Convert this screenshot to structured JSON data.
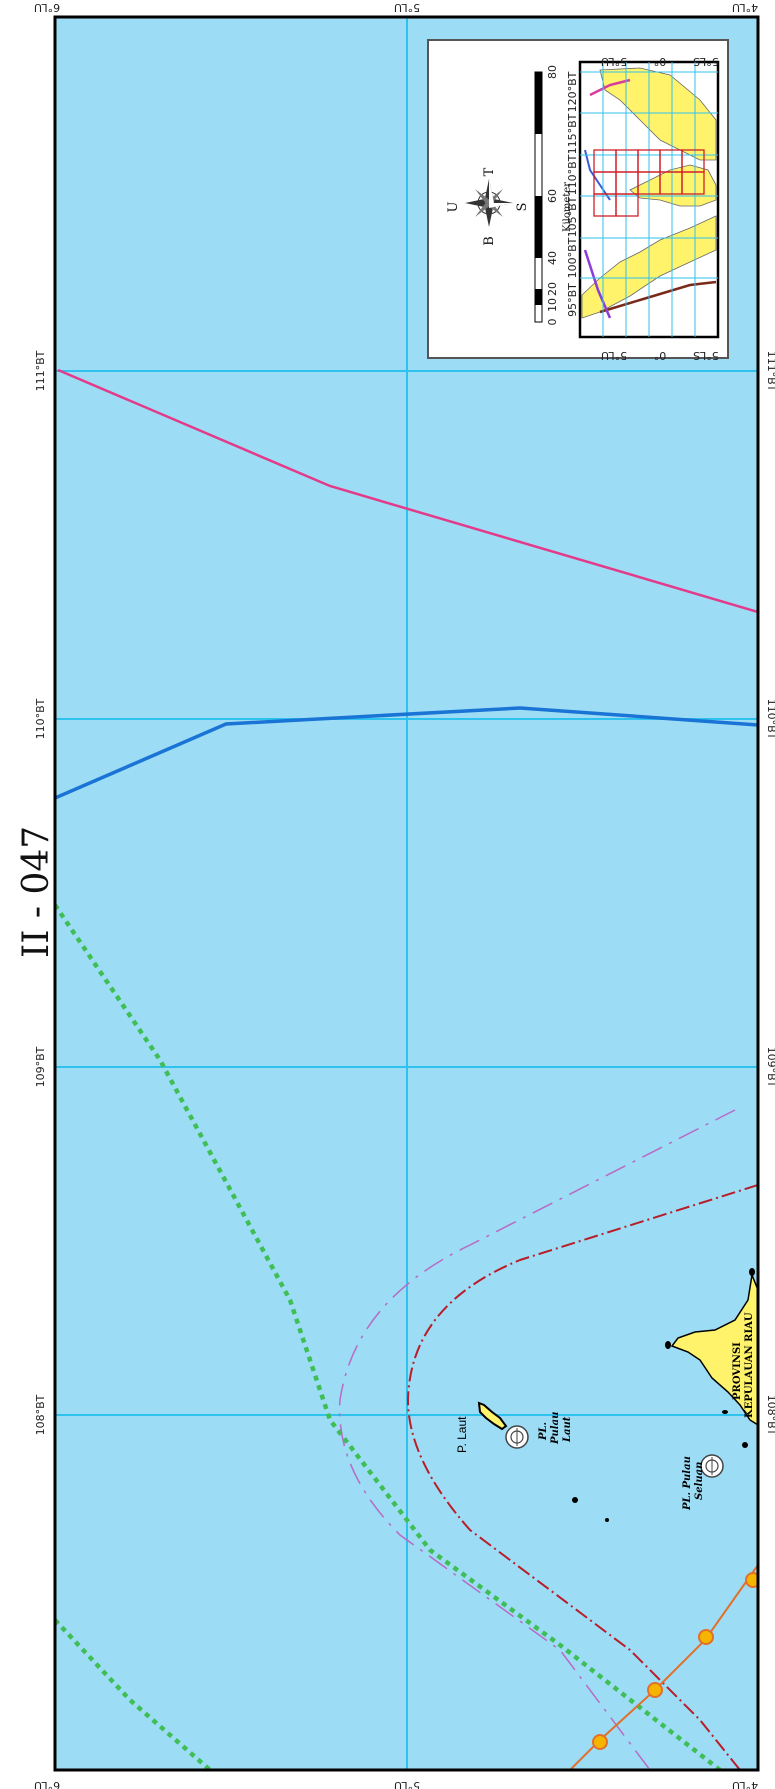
{
  "sheet": {
    "title": "II - 047"
  },
  "grid": {
    "latitudes": [
      "6°LU",
      "5°LU",
      "4°LU"
    ],
    "longitudes": [
      "108°BT",
      "109°BT",
      "110°BT",
      "111°BT"
    ]
  },
  "places": {
    "island_laut": "P. Laut",
    "pl_laut_1": "PL.",
    "pl_laut_2": "Pulau",
    "pl_laut_3": "Laut",
    "pl_seluan_1": "PL. Pulau",
    "pl_seluan_2": "Seluan",
    "province_1": "PROVINSI",
    "province_2": "KEPULAUAN RIAU"
  },
  "inset": {
    "compass": {
      "north": "U",
      "south": "S",
      "east": "T",
      "west": "B"
    },
    "scale": {
      "unit": "Kilometer",
      "ticks": [
        "0",
        "10",
        "20",
        "40",
        "60",
        "80"
      ]
    },
    "index_longitudes": [
      "95°BT",
      "100°BT",
      "105°BT",
      "110°BT",
      "115°BT",
      "120°BT"
    ],
    "index_latitudes": [
      "5°LU",
      "0°",
      "5°LS"
    ]
  },
  "colors": {
    "sea": "#9ddcf5",
    "grid": "#2fc2ee",
    "land": "#fff36c",
    "magenta_boundary": "#e33a8a",
    "blue_boundary": "#1a74d6",
    "green_boundary": "#3fbe55",
    "red_boundary": "#b81d2a",
    "pink_boundary": "#b86ac4",
    "cable": "#e0702b"
  }
}
